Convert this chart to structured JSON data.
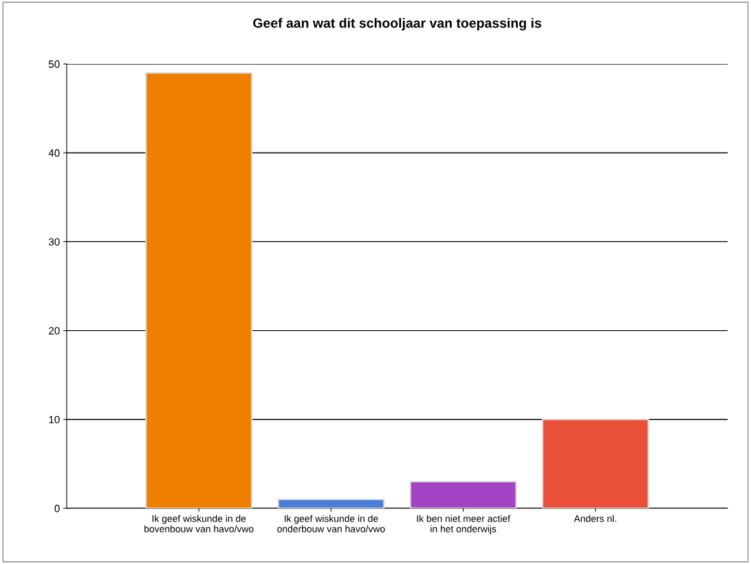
{
  "chart_data": {
    "type": "bar",
    "title": "Geef aan wat dit schooljaar van toepassing is",
    "categories": [
      "Ik geef wiskunde in de\nbovenbouw van havo/vwo",
      "Ik geef wiskunde in de\nonderbouw van havo/vwo",
      "Ik ben niet meer actief\nin het onderwijs",
      "Anders nl."
    ],
    "values": [
      49,
      1,
      3,
      10
    ],
    "colors": [
      "#ee7f00",
      "#4a80d8",
      "#a444c4",
      "#e8503a"
    ],
    "ylim": [
      0,
      50
    ],
    "yticks": [
      0,
      10,
      20,
      30,
      40,
      50
    ],
    "grid": "y"
  }
}
